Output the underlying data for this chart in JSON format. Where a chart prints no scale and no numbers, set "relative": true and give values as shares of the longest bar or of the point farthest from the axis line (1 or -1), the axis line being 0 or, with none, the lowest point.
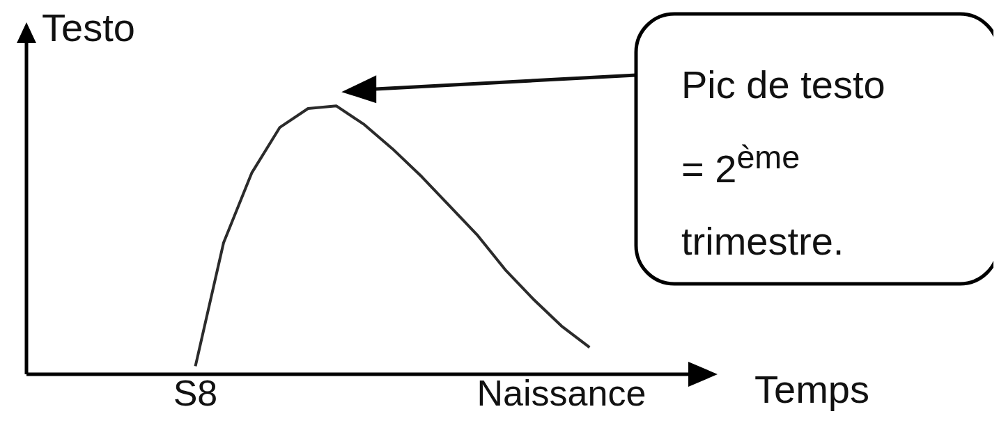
{
  "chart_data": {
    "type": "line",
    "relative": true,
    "xlabel": "Temps",
    "ylabel": "Testo",
    "categories": [
      null,
      null,
      null,
      null,
      null,
      null,
      "S8",
      null,
      null,
      null,
      null,
      null,
      null,
      null,
      null,
      null,
      null,
      null,
      null,
      "Naissance",
      null,
      null,
      null,
      null,
      null
    ],
    "series": [
      {
        "color": "#2b2b2b",
        "values": [
          null,
          null,
          null,
          null,
          null,
          null,
          0.03,
          0.49,
          0.75,
          0.92,
          0.99,
          1.0,
          0.93,
          0.84,
          0.74,
          0.63,
          0.52,
          0.39,
          0.28,
          0.18,
          0.1,
          null,
          null,
          null,
          null
        ]
      }
    ],
    "annotations": [
      "Pic de testo = 2$^{ème}$ trimestre."
    ],
    "marker": "none",
    "line_style": "solid"
  }
}
